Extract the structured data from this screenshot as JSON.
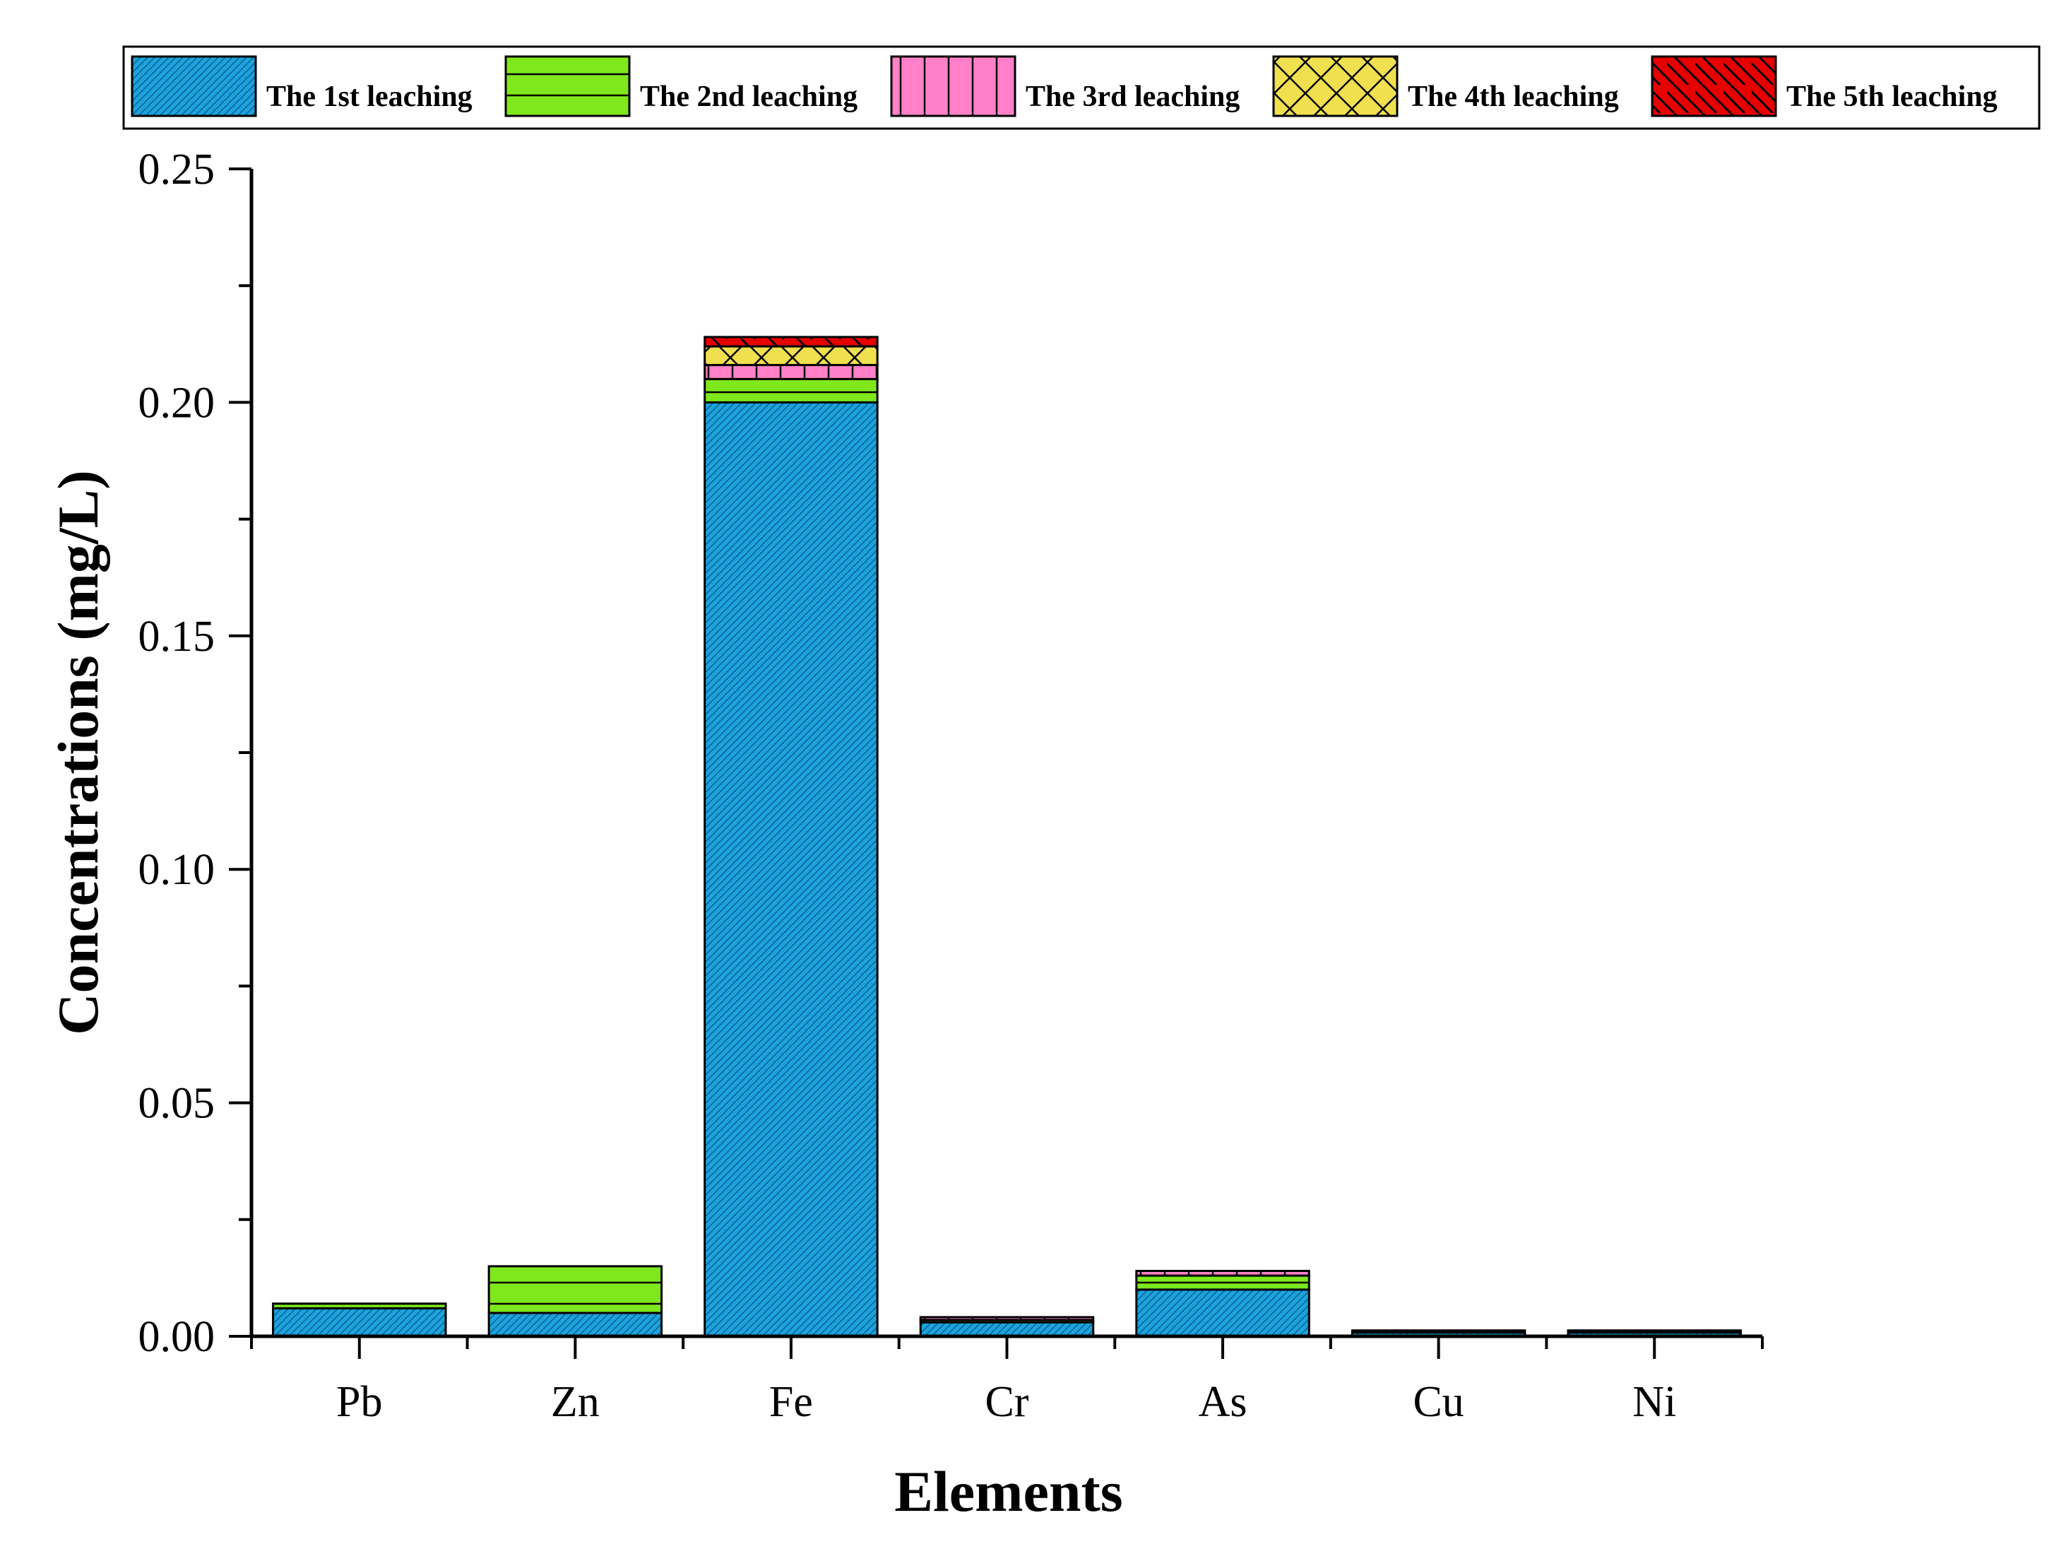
{
  "chart_data": {
    "type": "bar",
    "stacked": true,
    "title": "",
    "xlabel": "Elements",
    "ylabel": "Concentrations (mg/L)",
    "ylim": [
      0,
      0.25
    ],
    "yticks": [
      "0.00",
      "0.05",
      "0.10",
      "0.15",
      "0.20",
      "0.25"
    ],
    "grid": false,
    "legend_position": "top",
    "categories": [
      "Pb",
      "Zn",
      "Fe",
      "Cr",
      "As",
      "Cu",
      "Ni"
    ],
    "series": [
      {
        "name": "The 1st leaching",
        "color": "#1ba3df",
        "pattern": "fine-hatch",
        "values": [
          0.006,
          0.005,
          0.2,
          0.003,
          0.01,
          0.0008,
          0.0008
        ]
      },
      {
        "name": "The 2nd leaching",
        "color": "#7ee81c",
        "pattern": "horizontal",
        "values": [
          0.001,
          0.01,
          0.005,
          0.0005,
          0.003,
          0.0002,
          0.0002
        ]
      },
      {
        "name": "The 3rd leaching",
        "color": "#ff80c8",
        "pattern": "vertical",
        "values": [
          0.0,
          0.0,
          0.003,
          0.0006,
          0.001,
          0.0,
          0.0
        ]
      },
      {
        "name": "The 4th leaching",
        "color": "#f0e050",
        "pattern": "crosshatch",
        "values": [
          0.0,
          0.0,
          0.004,
          0.0,
          0.0,
          0.0,
          0.0
        ]
      },
      {
        "name": "The 5th leaching",
        "color": "#e60000",
        "pattern": "diagonal",
        "values": [
          0.0,
          0.0,
          0.002,
          0.0,
          0.0,
          0.0,
          0.0
        ]
      }
    ]
  }
}
